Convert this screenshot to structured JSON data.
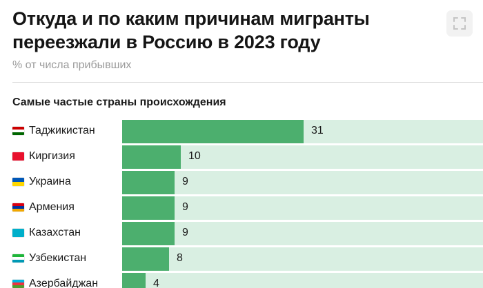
{
  "header": {
    "title": "Откуда и по каким причинам мигранты переезжали в Россию в 2023 году",
    "subtitle": "% от числа прибывших",
    "expand_icon": "expand-icon"
  },
  "section": {
    "title": "Самые частые страны происхождения"
  },
  "colors": {
    "bar": "#4caf6e",
    "track": "#d9efe2"
  },
  "chart_data": {
    "type": "bar",
    "orientation": "horizontal",
    "title": "Самые частые страны происхождения",
    "categories": [
      "Таджикистан",
      "Киргизия",
      "Украина",
      "Армения",
      "Казахстан",
      "Узбекистан",
      "Азербайджан"
    ],
    "values": [
      31,
      10,
      9,
      9,
      9,
      8,
      4
    ],
    "xlim": [
      0,
      100
    ],
    "flags": [
      [
        "#cc0000",
        "#ffffff",
        "#006600"
      ],
      [
        "#e8112d"
      ],
      [
        "#0057b7",
        "#ffd700"
      ],
      [
        "#d90012",
        "#0033a0",
        "#f2a800"
      ],
      [
        "#00afca"
      ],
      [
        "#1eb53a",
        "#ffffff",
        "#0099b5"
      ],
      [
        "#00b5e2",
        "#ef3340",
        "#509e2f"
      ]
    ]
  }
}
